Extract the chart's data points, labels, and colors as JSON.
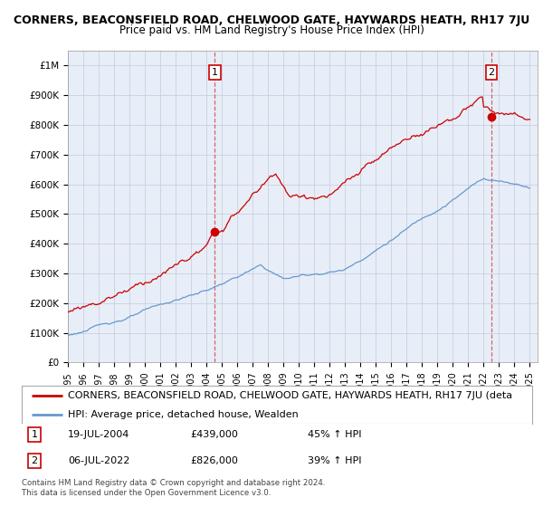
{
  "title": "CORNERS, BEACONSFIELD ROAD, CHELWOOD GATE, HAYWARDS HEATH, RH17 7JU",
  "subtitle": "Price paid vs. HM Land Registry's House Price Index (HPI)",
  "ylim": [
    0,
    1050000
  ],
  "yticks": [
    0,
    100000,
    200000,
    300000,
    400000,
    500000,
    600000,
    700000,
    800000,
    900000,
    1000000
  ],
  "ytick_labels": [
    "£0",
    "£100K",
    "£200K",
    "£300K",
    "£400K",
    "£500K",
    "£600K",
    "£700K",
    "£800K",
    "£900K",
    "£1M"
  ],
  "x_start_year": 1995,
  "x_end_year": 2025,
  "sale1_date": 2004.54,
  "sale1_price": 439000,
  "sale1_year_str": "19-JUL-2004",
  "sale1_price_str": "£439,000",
  "sale1_hpi_str": "45% ↑ HPI",
  "sale2_date": 2022.51,
  "sale2_price": 826000,
  "sale2_year_str": "06-JUL-2022",
  "sale2_price_str": "£826,000",
  "sale2_hpi_str": "39% ↑ HPI",
  "line_property_color": "#cc0000",
  "line_hpi_color": "#6699cc",
  "dot_color": "#cc0000",
  "vline_color": "#cc4444",
  "background_color": "#ffffff",
  "plot_bg_color": "#e8eef8",
  "grid_color": "#c8cfe0",
  "legend_property_label": "CORNERS, BEACONSFIELD ROAD, CHELWOOD GATE, HAYWARDS HEATH, RH17 7JU (deta",
  "legend_hpi_label": "HPI: Average price, detached house, Wealden",
  "footer_text": "Contains HM Land Registry data © Crown copyright and database right 2024.\nThis data is licensed under the Open Government Licence v3.0.",
  "title_fontsize": 9,
  "subtitle_fontsize": 8.5,
  "tick_fontsize": 7.5,
  "legend_fontsize": 8,
  "ann_fontsize": 8
}
